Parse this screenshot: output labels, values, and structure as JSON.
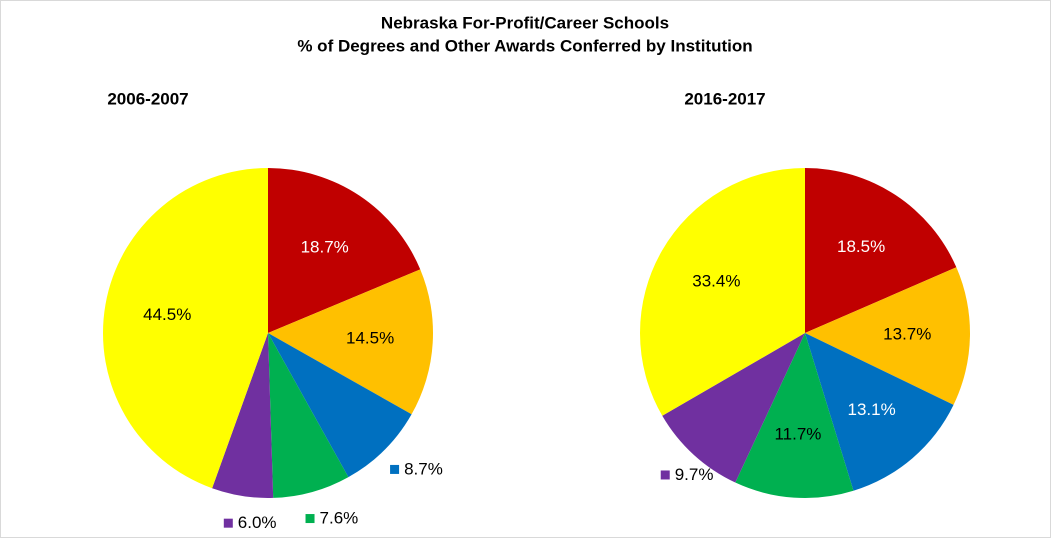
{
  "title_lines": [
    "Nebraska For-Profit/Career Schools",
    "% of Degrees and Other Awards Conferred by Institution"
  ],
  "chart_data": [
    {
      "type": "pie",
      "subtitle": "2006-2007",
      "values": [
        18.7,
        14.5,
        8.7,
        7.6,
        6.0,
        44.5
      ],
      "value_labels": [
        "18.7%",
        "14.5%",
        "8.7%",
        "7.6%",
        "6.0%",
        "44.5%"
      ],
      "colors": [
        "#c00000",
        "#ffc000",
        "#0070c0",
        "#00b050",
        "#7030a0",
        "#ffff00"
      ]
    },
    {
      "type": "pie",
      "subtitle": "2016-2017",
      "values": [
        18.5,
        13.7,
        13.1,
        11.7,
        9.7,
        33.4
      ],
      "value_labels": [
        "18.5%",
        "13.7%",
        "13.1%",
        "11.7%",
        "9.7%",
        "33.4%"
      ],
      "colors": [
        "#c00000",
        "#ffc000",
        "#0070c0",
        "#00b050",
        "#7030a0",
        "#ffff00"
      ]
    }
  ]
}
